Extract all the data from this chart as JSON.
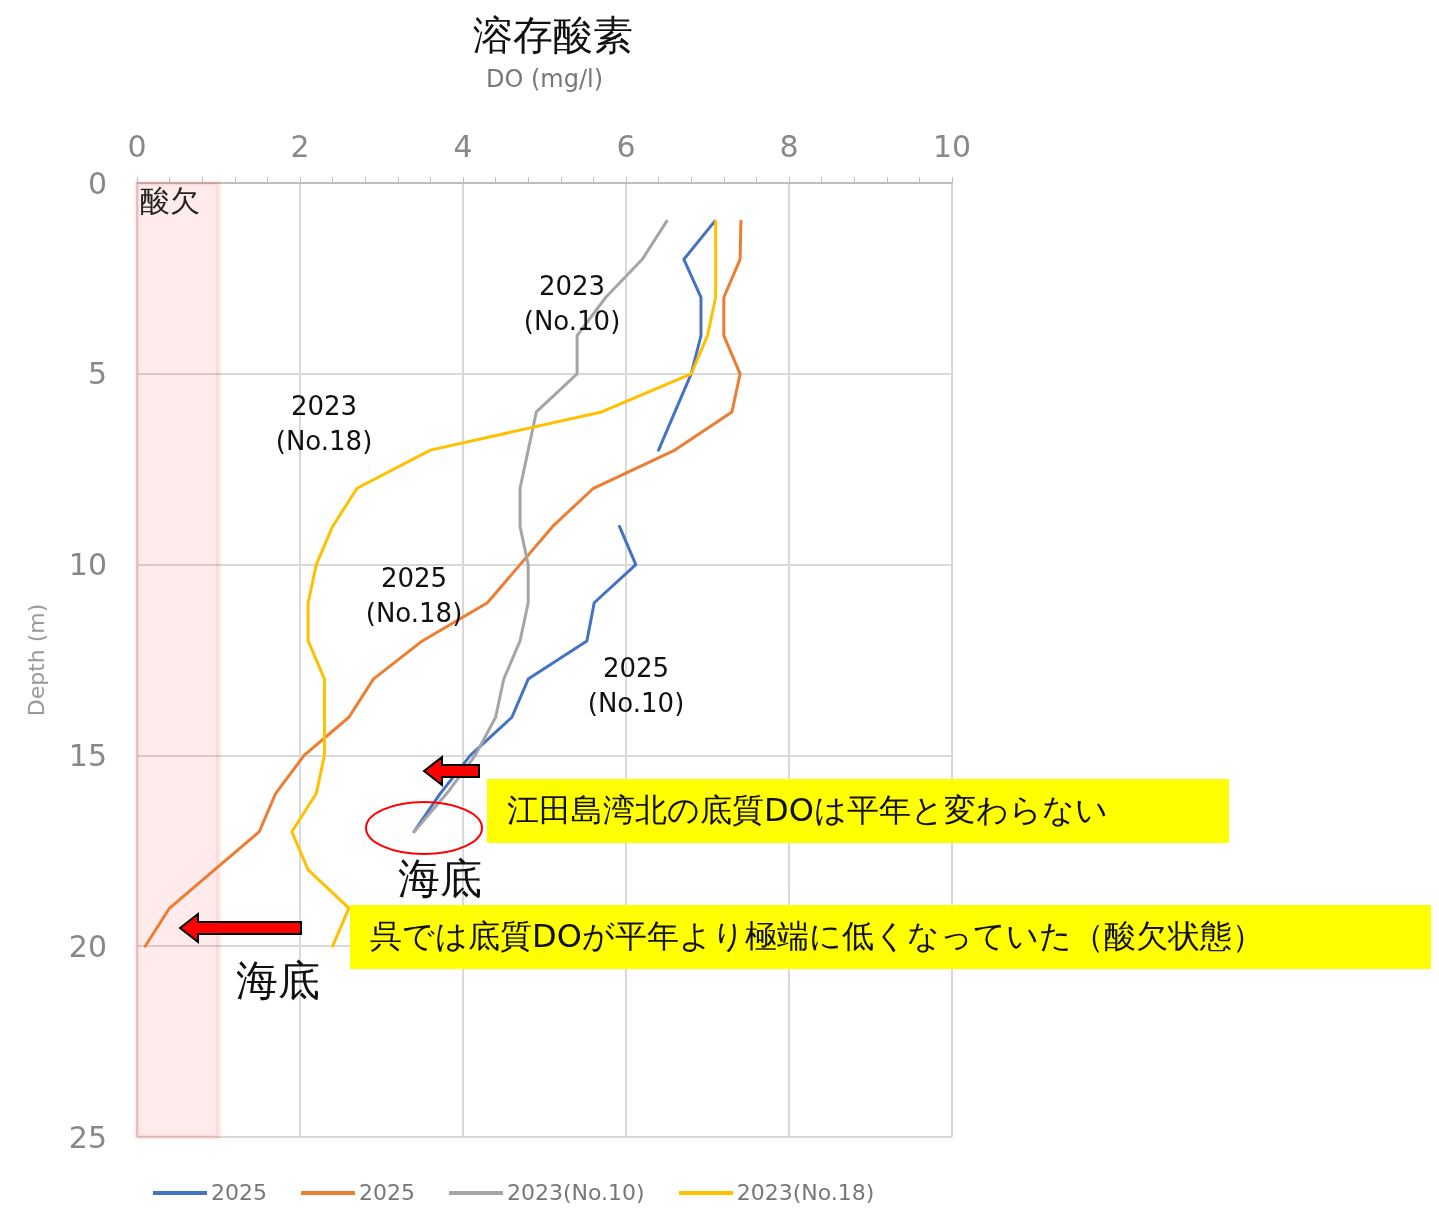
{
  "chart_data": {
    "type": "line",
    "title": "溶存酸素",
    "xlabel": "DO (mg/l)",
    "ylabel": "Depth (m)",
    "xlim": [
      0,
      10
    ],
    "xticks": [
      0,
      2,
      4,
      6,
      8,
      10
    ],
    "ylim": [
      25,
      0
    ],
    "yticks": [
      0,
      5,
      10,
      15,
      20,
      25
    ],
    "grid": true,
    "legend": "bottom",
    "marker": "none",
    "line_style": "solid",
    "series": [
      {
        "name": "2025",
        "color": "#4472c4",
        "x": [
          7.09,
          6.71,
          6.92,
          6.92,
          6.8,
          6.6,
          6.4,
          null,
          5.92,
          6.12,
          5.61,
          5.52,
          4.8,
          4.6,
          4.09,
          3.72,
          3.4
        ],
        "values": [
          1,
          2,
          3,
          4,
          5,
          6,
          7,
          null,
          9,
          10,
          11,
          12,
          13,
          14,
          15,
          16,
          17
        ]
      },
      {
        "name": "2025",
        "color": "#ed7d31",
        "x": [
          7.41,
          7.4,
          7.2,
          7.2,
          7.4,
          7.3,
          6.6,
          5.6,
          5.1,
          4.7,
          4.3,
          3.5,
          2.9,
          2.6,
          2.05,
          1.7,
          1.5,
          0.95,
          0.4,
          0.1
        ],
        "values": [
          1,
          2,
          3,
          4,
          5,
          6,
          7,
          8,
          9,
          10,
          11,
          12,
          13,
          14,
          15,
          16,
          17,
          18,
          19,
          20
        ]
      },
      {
        "name": "2023(No.10)",
        "color": "#a5a5a5",
        "x": [
          6.5,
          6.2,
          5.75,
          5.4,
          5.4,
          4.9,
          4.8,
          4.7,
          4.7,
          4.8,
          4.8,
          4.7,
          4.5,
          4.4,
          4.15,
          3.8,
          3.4
        ],
        "values": [
          1,
          2,
          3,
          4,
          5,
          6,
          7,
          8,
          9,
          10,
          11,
          12,
          13,
          14,
          15,
          16,
          17
        ]
      },
      {
        "name": "2023(No.18)",
        "color": "#ffc000",
        "x": [
          7.1,
          7.1,
          7.1,
          7.0,
          6.8,
          5.7,
          3.6,
          2.7,
          2.4,
          2.2,
          2.1,
          2.1,
          2.3,
          2.3,
          2.3,
          2.2,
          1.9,
          2.1,
          2.6,
          2.4
        ],
        "values": [
          1,
          2,
          3,
          4,
          5,
          6,
          7,
          8,
          9,
          10,
          11,
          12,
          13,
          14,
          15,
          16,
          17,
          18,
          19,
          20
        ]
      }
    ],
    "bands": [
      {
        "axis": "x",
        "from": 0,
        "to": 1,
        "label": "酸欠",
        "color": "#ff0000"
      }
    ],
    "annotations": [
      "2023\n(No.10)",
      "2023\n(No.18)",
      "2025\n(No.18)",
      "2025\n(No.10)",
      "海底",
      "海底",
      "江田島湾北の底質DOは平年と変わらない",
      "呉では底質DOが平年より極端に低くなっていた（酸欠状態）"
    ]
  }
}
